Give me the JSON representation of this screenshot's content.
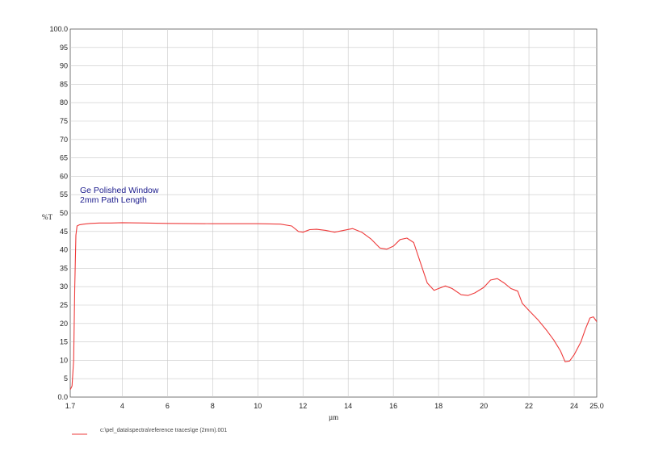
{
  "chart_data": {
    "type": "line",
    "ylabel": "%T",
    "xlabel": "µm",
    "xlim": [
      1.7,
      25.0
    ],
    "ylim": [
      0,
      100
    ],
    "x_ticks": [
      {
        "value": 1.7,
        "label": "1.7"
      },
      {
        "value": 4,
        "label": "4"
      },
      {
        "value": 6,
        "label": "6"
      },
      {
        "value": 8,
        "label": "8"
      },
      {
        "value": 10,
        "label": "10"
      },
      {
        "value": 12,
        "label": "12"
      },
      {
        "value": 14,
        "label": "14"
      },
      {
        "value": 16,
        "label": "16"
      },
      {
        "value": 18,
        "label": "18"
      },
      {
        "value": 20,
        "label": "20"
      },
      {
        "value": 22,
        "label": "22"
      },
      {
        "value": 24,
        "label": "24"
      },
      {
        "value": 25.0,
        "label": "25.0"
      }
    ],
    "y_ticks": [
      "0.0",
      "5",
      "10",
      "15",
      "20",
      "25",
      "30",
      "35",
      "40",
      "45",
      "50",
      "55",
      "60",
      "65",
      "70",
      "75",
      "80",
      "85",
      "90",
      "95",
      "100.0"
    ],
    "grid": true,
    "annotations": [
      "Ge Polished Window",
      "2mm Path Length"
    ],
    "series": [
      {
        "name": "c:\\pel_data\\spectra\\reference traces\\ge (2mm).001",
        "color": "#ee3b3b",
        "x": [
          1.7,
          1.78,
          1.85,
          1.9,
          1.95,
          2.0,
          2.1,
          2.3,
          2.6,
          3.0,
          3.5,
          4.0,
          5.0,
          6.0,
          8.0,
          10.0,
          11.0,
          11.5,
          11.8,
          12.0,
          12.3,
          12.6,
          13.0,
          13.4,
          13.8,
          14.2,
          14.6,
          15.0,
          15.4,
          15.7,
          16.0,
          16.3,
          16.6,
          16.9,
          17.2,
          17.5,
          17.8,
          18.0,
          18.3,
          18.6,
          19.0,
          19.3,
          19.6,
          20.0,
          20.3,
          20.6,
          20.9,
          21.2,
          21.5,
          21.7,
          22.0,
          22.4,
          22.8,
          23.1,
          23.4,
          23.6,
          23.8,
          24.0,
          24.3,
          24.5,
          24.7,
          24.85,
          25.0
        ],
        "y": [
          2.0,
          3.0,
          10.0,
          30.0,
          44.0,
          46.5,
          46.8,
          47.0,
          47.2,
          47.3,
          47.3,
          47.4,
          47.3,
          47.2,
          47.1,
          47.1,
          47.0,
          46.5,
          45.0,
          44.8,
          45.5,
          45.6,
          45.3,
          44.8,
          45.3,
          45.8,
          44.8,
          43.0,
          40.5,
          40.2,
          41.0,
          42.8,
          43.2,
          42.0,
          36.5,
          31.0,
          29.0,
          29.5,
          30.2,
          29.5,
          27.8,
          27.6,
          28.3,
          29.8,
          31.8,
          32.2,
          31.0,
          29.5,
          28.8,
          25.5,
          23.5,
          21.0,
          18.0,
          15.5,
          12.5,
          9.6,
          9.8,
          11.5,
          15.0,
          18.5,
          21.5,
          21.8,
          20.5
        ]
      }
    ]
  }
}
